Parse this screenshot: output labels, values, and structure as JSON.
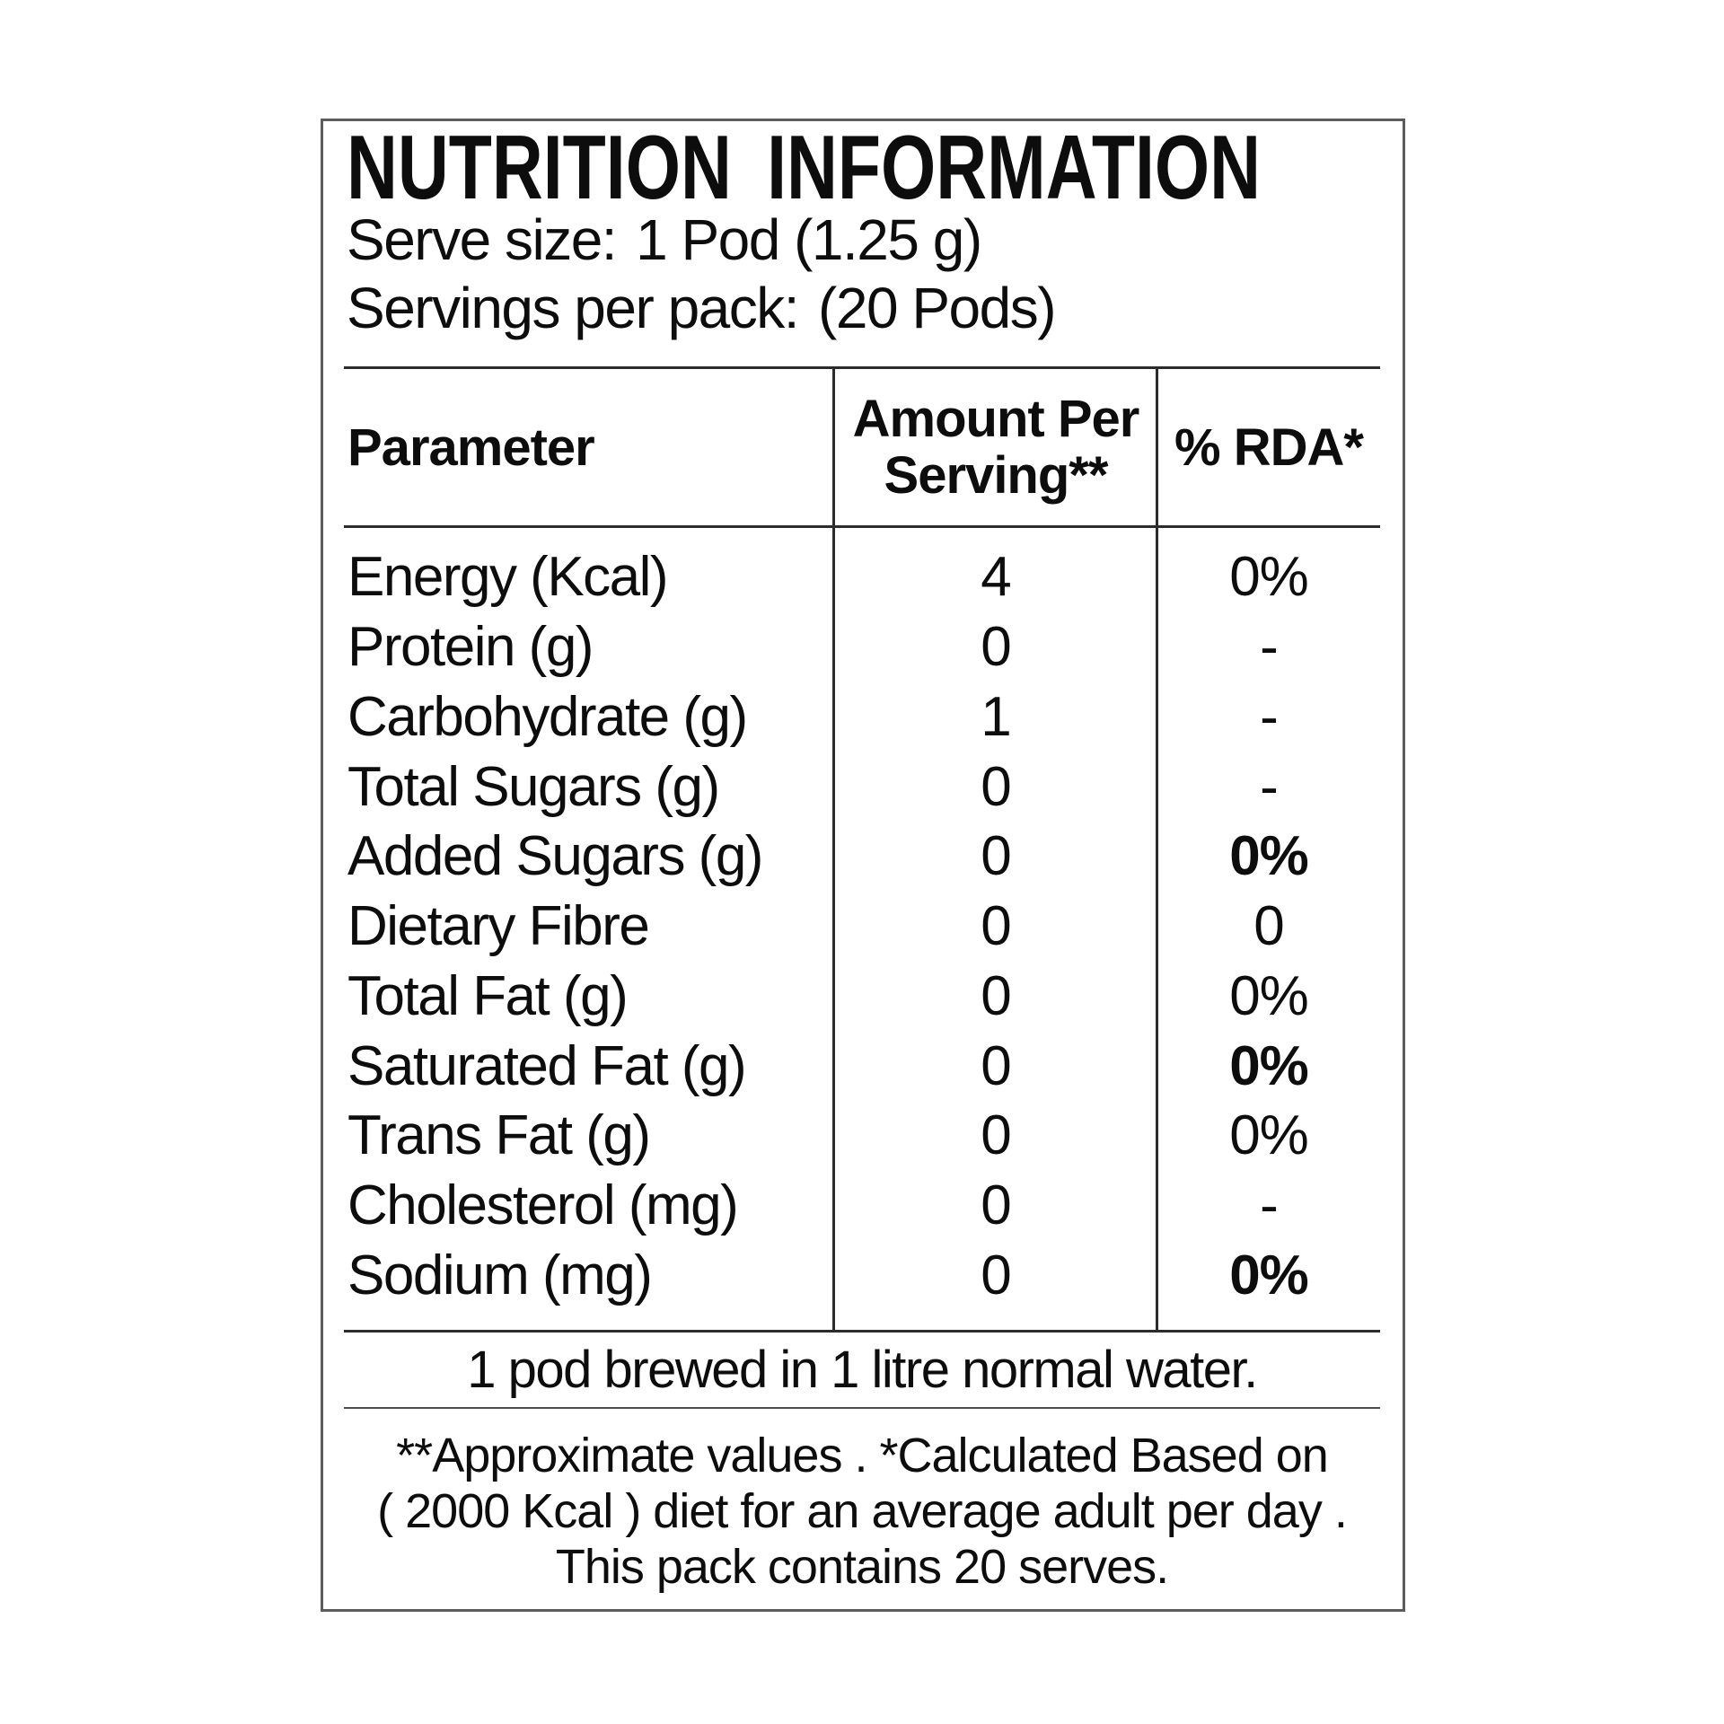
{
  "title": "NUTRITION INFORMATION",
  "serving_info": {
    "serve_size": {
      "label": "Serve size:",
      "value": "1 Pod (1.25 g)"
    },
    "servings_per_pack": {
      "label": "Servings per pack:",
      "value": "(20 Pods)"
    }
  },
  "table": {
    "header": {
      "parameter": "Parameter",
      "amount_line1": "Amount Per",
      "amount_line2": "Serving**",
      "rda": "% RDA*"
    },
    "rows": [
      {
        "parameter": "Energy (Kcal)",
        "amount": "4",
        "rda": "0%",
        "rda_bold": false
      },
      {
        "parameter": "Protein (g)",
        "amount": "0",
        "rda": "-",
        "rda_bold": false
      },
      {
        "parameter": "Carbohydrate (g)",
        "amount": "1",
        "rda": "-",
        "rda_bold": false
      },
      {
        "parameter": "Total Sugars (g)",
        "amount": "0",
        "rda": "-",
        "rda_bold": false
      },
      {
        "parameter": "Added Sugars (g)",
        "amount": "0",
        "rda": "0%",
        "rda_bold": true
      },
      {
        "parameter": "Dietary Fibre",
        "amount": "0",
        "rda": "0",
        "rda_bold": false
      },
      {
        "parameter": "Total Fat (g)",
        "amount": "0",
        "rda": "0%",
        "rda_bold": false
      },
      {
        "parameter": "Saturated Fat (g)",
        "amount": "0",
        "rda": "0%",
        "rda_bold": true
      },
      {
        "parameter": "Trans Fat (g)",
        "amount": "0",
        "rda": "0%",
        "rda_bold": false
      },
      {
        "parameter": "Cholesterol (mg)",
        "amount": "0",
        "rda": "-",
        "rda_bold": false
      },
      {
        "parameter": "Sodium (mg)",
        "amount": "0",
        "rda": "0%",
        "rda_bold": true
      }
    ]
  },
  "notes": {
    "brew": "1 pod brewed in 1 litre normal water.",
    "footnotes": [
      "**Approximate values . *Calculated Based on",
      "( 2000 Kcal ) diet for an average adult per day .",
      "This pack contains 20 serves."
    ]
  },
  "colors": {
    "background": "#ffffff",
    "text": "#0d0d0d",
    "table_rule": "#2c2c2c",
    "thin_rule": "#4d4d4d",
    "panel_border": "#5c5c5e"
  }
}
